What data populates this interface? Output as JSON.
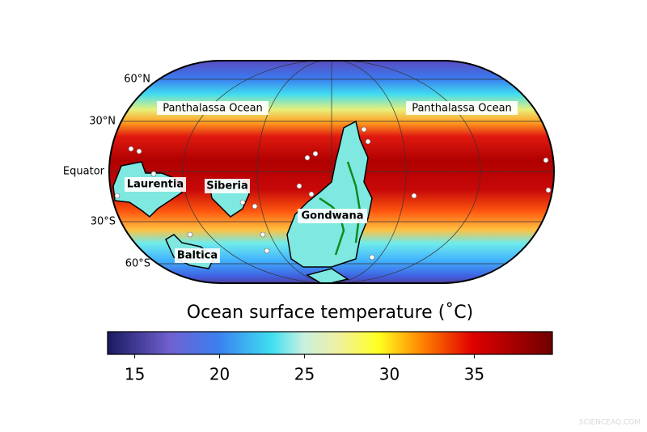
{
  "map": {
    "lat_labels": [
      "60°N",
      "30°N",
      "Equator",
      "30°S",
      "60°S"
    ],
    "ocean_labels": [
      "Panthalassa Ocean",
      "Panthalassa Ocean"
    ],
    "continent_labels": [
      "Laurentia",
      "Siberia",
      "Gondwana",
      "Baltica"
    ]
  },
  "colorbar": {
    "title": "Ocean surface temperature (˚C)",
    "lim": [
      13.4,
      39.6
    ],
    "ticks": [
      15,
      20,
      25,
      30,
      35
    ]
  },
  "watermark": "SCIENCEAQ.COM"
}
